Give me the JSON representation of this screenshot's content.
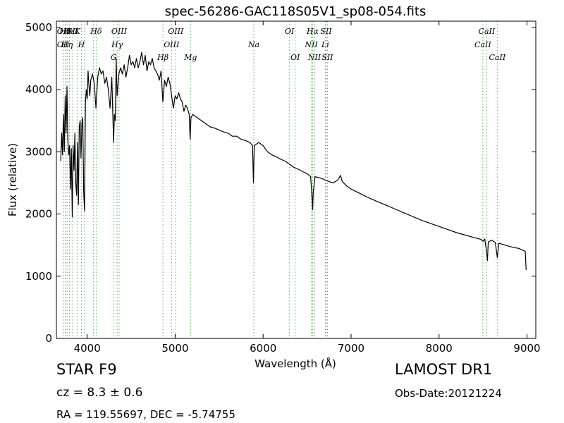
{
  "chart_data": {
    "type": "line",
    "title": "spec-56286-GAC118S05V1_sp08-054.fits",
    "xlabel": "Wavelength (Å)",
    "ylabel": "Flux (relative)",
    "xlim": [
      3650,
      9100
    ],
    "ylim": [
      0,
      5100
    ],
    "xticks": [
      4000,
      5000,
      6000,
      7000,
      8000,
      9000
    ],
    "yticks": [
      0,
      1000,
      2000,
      3000,
      4000,
      5000
    ],
    "grid": false,
    "series": [
      {
        "color": "#000000",
        "points": [
          [
            3700,
            2850
          ],
          [
            3710,
            3300
          ],
          [
            3720,
            2950
          ],
          [
            3730,
            3600
          ],
          [
            3740,
            3000
          ],
          [
            3750,
            3900
          ],
          [
            3760,
            3300
          ],
          [
            3770,
            4050
          ],
          [
            3780,
            3200
          ],
          [
            3790,
            2950
          ],
          [
            3800,
            3100
          ],
          [
            3810,
            2400
          ],
          [
            3820,
            3050
          ],
          [
            3830,
            1950
          ],
          [
            3840,
            3100
          ],
          [
            3850,
            2700
          ],
          [
            3860,
            3300
          ],
          [
            3870,
            2500
          ],
          [
            3880,
            2300
          ],
          [
            3890,
            3150
          ],
          [
            3900,
            2150
          ],
          [
            3910,
            3400
          ],
          [
            3920,
            3500
          ],
          [
            3930,
            2900
          ],
          [
            3940,
            3450
          ],
          [
            3950,
            3550
          ],
          [
            3960,
            2350
          ],
          [
            3970,
            2050
          ],
          [
            3980,
            3800
          ],
          [
            3990,
            4000
          ],
          [
            4000,
            3850
          ],
          [
            4010,
            4300
          ],
          [
            4020,
            4050
          ],
          [
            4030,
            3900
          ],
          [
            4040,
            4150
          ],
          [
            4060,
            4250
          ],
          [
            4080,
            4100
          ],
          [
            4100,
            3700
          ],
          [
            4120,
            4200
          ],
          [
            4140,
            4350
          ],
          [
            4160,
            4250
          ],
          [
            4180,
            4300
          ],
          [
            4200,
            4100
          ],
          [
            4220,
            4200
          ],
          [
            4240,
            4000
          ],
          [
            4260,
            3700
          ],
          [
            4280,
            4200
          ],
          [
            4300,
            3150
          ],
          [
            4310,
            3600
          ],
          [
            4320,
            3500
          ],
          [
            4330,
            4500
          ],
          [
            4340,
            3900
          ],
          [
            4360,
            4250
          ],
          [
            4380,
            4350
          ],
          [
            4400,
            4250
          ],
          [
            4420,
            4400
          ],
          [
            4440,
            4200
          ],
          [
            4460,
            4350
          ],
          [
            4480,
            4550
          ],
          [
            4500,
            4400
          ],
          [
            4520,
            4450
          ],
          [
            4540,
            4350
          ],
          [
            4560,
            4500
          ],
          [
            4580,
            4350
          ],
          [
            4600,
            4450
          ],
          [
            4620,
            4600
          ],
          [
            4640,
            4400
          ],
          [
            4660,
            4550
          ],
          [
            4680,
            4300
          ],
          [
            4700,
            4450
          ],
          [
            4720,
            4400
          ],
          [
            4740,
            4500
          ],
          [
            4760,
            4350
          ],
          [
            4780,
            4300
          ],
          [
            4800,
            4250
          ],
          [
            4820,
            4150
          ],
          [
            4840,
            4300
          ],
          [
            4860,
            3800
          ],
          [
            4880,
            4150
          ],
          [
            4900,
            4050
          ],
          [
            4920,
            4200
          ],
          [
            4940,
            4100
          ],
          [
            4960,
            3900
          ],
          [
            4980,
            3700
          ],
          [
            5000,
            3900
          ],
          [
            5020,
            3850
          ],
          [
            5040,
            3950
          ],
          [
            5060,
            3850
          ],
          [
            5080,
            3800
          ],
          [
            5100,
            3650
          ],
          [
            5120,
            3750
          ],
          [
            5140,
            3700
          ],
          [
            5160,
            3600
          ],
          [
            5170,
            3200
          ],
          [
            5180,
            3550
          ],
          [
            5200,
            3600
          ],
          [
            5250,
            3550
          ],
          [
            5300,
            3500
          ],
          [
            5350,
            3450
          ],
          [
            5400,
            3400
          ],
          [
            5450,
            3380
          ],
          [
            5500,
            3350
          ],
          [
            5550,
            3320
          ],
          [
            5600,
            3300
          ],
          [
            5650,
            3250
          ],
          [
            5700,
            3250
          ],
          [
            5750,
            3200
          ],
          [
            5800,
            3180
          ],
          [
            5850,
            3150
          ],
          [
            5880,
            3100
          ],
          [
            5890,
            2500
          ],
          [
            5900,
            3100
          ],
          [
            5950,
            3150
          ],
          [
            6000,
            3100
          ],
          [
            6050,
            3000
          ],
          [
            6100,
            2950
          ],
          [
            6150,
            2920
          ],
          [
            6200,
            2880
          ],
          [
            6250,
            2850
          ],
          [
            6300,
            2800
          ],
          [
            6350,
            2750
          ],
          [
            6400,
            2720
          ],
          [
            6450,
            2680
          ],
          [
            6500,
            2650
          ],
          [
            6540,
            2600
          ],
          [
            6555,
            2300
          ],
          [
            6563,
            2070
          ],
          [
            6570,
            2350
          ],
          [
            6590,
            2600
          ],
          [
            6650,
            2580
          ],
          [
            6700,
            2550
          ],
          [
            6750,
            2520
          ],
          [
            6800,
            2500
          ],
          [
            6850,
            2550
          ],
          [
            6880,
            2620
          ],
          [
            6900,
            2520
          ],
          [
            6950,
            2450
          ],
          [
            7000,
            2400
          ],
          [
            7100,
            2330
          ],
          [
            7200,
            2260
          ],
          [
            7300,
            2200
          ],
          [
            7400,
            2140
          ],
          [
            7500,
            2080
          ],
          [
            7600,
            2020
          ],
          [
            7700,
            1960
          ],
          [
            7800,
            1900
          ],
          [
            7900,
            1850
          ],
          [
            8000,
            1800
          ],
          [
            8100,
            1750
          ],
          [
            8200,
            1700
          ],
          [
            8300,
            1660
          ],
          [
            8400,
            1620
          ],
          [
            8480,
            1590
          ],
          [
            8500,
            1560
          ],
          [
            8520,
            1600
          ],
          [
            8540,
            1400
          ],
          [
            8550,
            1250
          ],
          [
            8560,
            1550
          ],
          [
            8600,
            1580
          ],
          [
            8640,
            1540
          ],
          [
            8662,
            1300
          ],
          [
            8680,
            1530
          ],
          [
            8750,
            1500
          ],
          [
            8800,
            1480
          ],
          [
            8850,
            1460
          ],
          [
            8900,
            1450
          ],
          [
            8950,
            1420
          ],
          [
            8980,
            1400
          ],
          [
            8990,
            1100
          ]
        ]
      }
    ],
    "lines": [
      {
        "wavelength": 3727,
        "label": "OII",
        "row": 0
      },
      {
        "wavelength": 3727,
        "label": "OII",
        "row": 1
      },
      {
        "wavelength": 3750,
        "label": "Hθ",
        "row": 0
      },
      {
        "wavelength": 3771,
        "label": "Hη",
        "row": 1
      },
      {
        "wavelength": 3798,
        "label": "Hε",
        "row": 0
      },
      {
        "wavelength": 3835,
        "label": "SII",
        "row": 0
      },
      {
        "wavelength": 3889,
        "label": "K",
        "row": 0
      },
      {
        "wavelength": 3934,
        "label": "H",
        "row": 1
      },
      {
        "wavelength": 3969,
        "label": "",
        "row": 0
      },
      {
        "wavelength": 4070,
        "label": "",
        "row": 0
      },
      {
        "wavelength": 4102,
        "label": "Hδ",
        "row": 0
      },
      {
        "wavelength": 4300,
        "label": "G",
        "row": 2
      },
      {
        "wavelength": 4340,
        "label": "Hγ",
        "row": 1
      },
      {
        "wavelength": 4363,
        "label": "OIII",
        "row": 0
      },
      {
        "wavelength": 4861,
        "label": "Hβ",
        "row": 2
      },
      {
        "wavelength": 4959,
        "label": "OIII",
        "row": 1
      },
      {
        "wavelength": 5007,
        "label": "OIII",
        "row": 0
      },
      {
        "wavelength": 5175,
        "label": "Mg",
        "row": 2
      },
      {
        "wavelength": 5894,
        "label": "Na",
        "row": 1
      },
      {
        "wavelength": 6300,
        "label": "OI",
        "row": 0
      },
      {
        "wavelength": 6364,
        "label": "OI",
        "row": 2
      },
      {
        "wavelength": 6548,
        "label": "NII",
        "row": 1
      },
      {
        "wavelength": 6563,
        "label": "Hα",
        "row": 0
      },
      {
        "wavelength": 6583,
        "label": "NII",
        "row": 2
      },
      {
        "wavelength": 6707,
        "label": "Li",
        "row": 1
      },
      {
        "wavelength": 6716,
        "label": "SII",
        "row": 0
      },
      {
        "wavelength": 6731,
        "label": "SII",
        "row": 2
      },
      {
        "wavelength": 8498,
        "label": "CaII",
        "row": 1
      },
      {
        "wavelength": 8542,
        "label": "CaII",
        "row": 0
      },
      {
        "wavelength": 8662,
        "label": "CaII",
        "row": 2
      }
    ],
    "line_color": "#4bb84b"
  },
  "info": {
    "object_class": "STAR   F9",
    "survey": "LAMOST DR1",
    "redshift": "cz = 8.3 ± 0.6",
    "obs_date": "Obs-Date:20121224",
    "coords": "RA = 119.55697, DEC = -5.74755"
  }
}
